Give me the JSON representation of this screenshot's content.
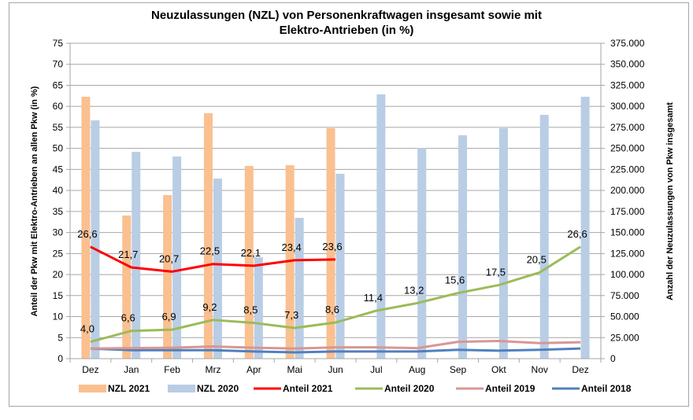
{
  "chart_data": {
    "type": "bar",
    "title_line1": "Neuzulassungen (NZL) von Personenkraftwagen insgesamt sowie mit",
    "title_line2": "Elektro-Antrieben (in %)",
    "categories": [
      "Dez",
      "Jan",
      "Feb",
      "Mrz",
      "Apr",
      "Mai",
      "Jun",
      "Jul",
      "Aug",
      "Sep",
      "Okt",
      "Nov",
      "Dez"
    ],
    "ylabel_left": "Anteil  der Pkw mit Elektro-Antrieben an allen Pkw (in %)",
    "ylabel_right": "Anzahl der Neuzulassungen von Pkw insgesamt",
    "ylim_left": [
      0,
      75
    ],
    "ylim_right": [
      0,
      375000
    ],
    "yticks_left": [
      "0",
      "5",
      "10",
      "15",
      "20",
      "25",
      "30",
      "35",
      "40",
      "45",
      "50",
      "55",
      "60",
      "65",
      "70",
      "75"
    ],
    "yticks_right": [
      "0",
      "25.000",
      "50.000",
      "75.000",
      "100.000",
      "125.000",
      "150.000",
      "175.000",
      "200.000",
      "225.000",
      "250.000",
      "275.000",
      "300.000",
      "325.000",
      "350.000",
      "375.000"
    ],
    "grid": true,
    "legend_position": "bottom",
    "bar_series": [
      {
        "name": "NZL 2021",
        "color": "#fac090",
        "axis": "right",
        "values": [
          311400,
          170200,
          194500,
          291800,
          229100,
          230000,
          274000,
          null,
          null,
          null,
          null,
          null,
          null
        ]
      },
      {
        "name": "NZL 2020",
        "color": "#b9cde5",
        "axis": "right",
        "values": [
          283300,
          245900,
          240300,
          214100,
          120600,
          167400,
          219800,
          314200,
          250600,
          265600,
          274000,
          289900,
          311400
        ]
      }
    ],
    "line_series": [
      {
        "name": "Anteil 2021",
        "color": "#ff0000",
        "axis": "left",
        "values": [
          26.6,
          21.7,
          20.7,
          22.5,
          22.1,
          23.4,
          23.6,
          null,
          null,
          null,
          null,
          null,
          null
        ],
        "labels": [
          "26,6",
          "21,7",
          "20,7",
          "22,5",
          "22,1",
          "23,4",
          "23,6",
          null,
          null,
          null,
          null,
          null,
          null
        ]
      },
      {
        "name": "Anteil 2020",
        "color": "#9bbb59",
        "axis": "left",
        "values": [
          4.0,
          6.6,
          6.9,
          9.2,
          8.5,
          7.3,
          8.6,
          11.4,
          13.2,
          15.6,
          17.5,
          20.5,
          26.6
        ],
        "labels": [
          "4,0",
          "6,6",
          "6,9",
          "9,2",
          "8,5",
          "7,3",
          "8,6",
          "11,4",
          "13,2",
          "15,6",
          "17,5",
          "20,5",
          "26,6"
        ]
      },
      {
        "name": "Anteil 2019",
        "color": "#d99694",
        "axis": "left",
        "values": [
          2.4,
          2.5,
          2.6,
          2.9,
          2.6,
          2.4,
          2.7,
          2.7,
          2.5,
          4.0,
          4.2,
          3.7,
          3.9
        ],
        "labels": null
      },
      {
        "name": "Anteil 2018",
        "color": "#4f81bd",
        "axis": "left",
        "values": [
          2.4,
          2.0,
          2.0,
          2.0,
          1.7,
          1.5,
          1.7,
          1.7,
          1.7,
          2.1,
          1.9,
          2.1,
          2.4
        ],
        "labels": null
      }
    ]
  }
}
